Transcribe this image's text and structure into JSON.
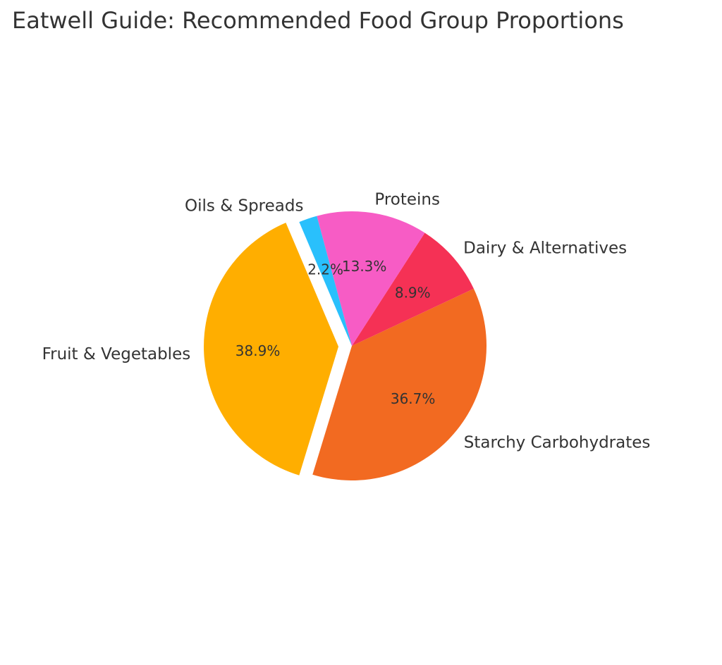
{
  "chart_data": {
    "type": "pie",
    "title": "Eatwell Guide: Recommended Food Group Proportions",
    "categories": [
      "Fruit & Vegetables",
      "Starchy Carbohydrates",
      "Dairy & Alternatives",
      "Proteins",
      "Oils & Spreads"
    ],
    "values": [
      38.9,
      36.7,
      8.9,
      13.3,
      2.2
    ],
    "value_labels": [
      "38.9%",
      "36.7%",
      "8.9%",
      "13.3%",
      "2.2%"
    ],
    "colors": [
      "#FFAE00",
      "#F26A21",
      "#F53155",
      "#F75CC5",
      "#29C0FC"
    ],
    "exploded": [
      "Fruit & Vegetables"
    ],
    "legend": "none"
  }
}
